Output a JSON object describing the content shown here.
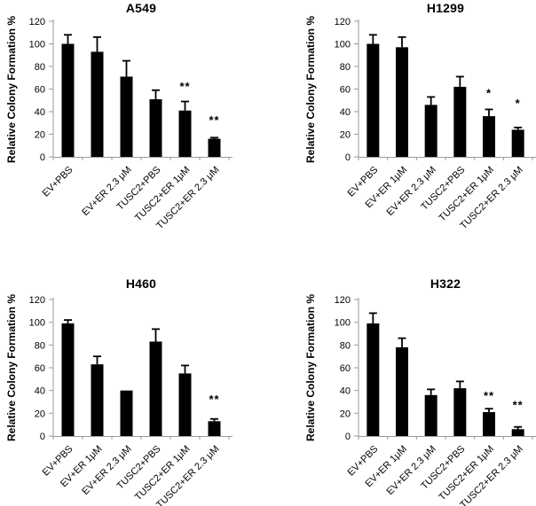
{
  "figure": {
    "background": "#ffffff",
    "bar_color": "#000000",
    "axis_color": "#9a9a9a",
    "error_bar_color": "#000000",
    "text_color": "#000000"
  },
  "chart_data": [
    {
      "type": "bar",
      "title": "A549",
      "ylabel": "Relative Colony Formation %",
      "ylim": [
        0,
        120
      ],
      "ytick_step": 20,
      "ytick_labels": [
        "0",
        "20",
        "40",
        "60",
        "80",
        "100",
        "120"
      ],
      "grid": false,
      "legend": false,
      "categories": [
        "EV+PBS",
        "",
        "EV+ER 2.3 μM",
        "TUSC2+PBS",
        "TUSC2+ER 1μM",
        "TUSC2+ER 2.3 μM"
      ],
      "values": [
        100,
        93,
        71,
        51,
        41,
        16
      ],
      "errors": [
        8,
        13,
        14,
        8,
        8,
        1
      ],
      "significance": [
        "",
        "",
        "",
        "",
        "**",
        "**"
      ],
      "sig_y": [
        0,
        0,
        0,
        0,
        62,
        32
      ]
    },
    {
      "type": "bar",
      "title": "H1299",
      "ylabel": "Relative Colony Formation %",
      "ylim": [
        0,
        120
      ],
      "ytick_step": 20,
      "ytick_labels": [
        "0",
        "20",
        "40",
        "60",
        "80",
        "100",
        "120"
      ],
      "grid": false,
      "legend": false,
      "categories": [
        "EV+PBS",
        "EV+ER 1μM",
        "EV+ER 2.3 μM",
        "TUSC2+PBS",
        "TUSC2+ER 1μM",
        "TUSC2+ER 2.3 μM"
      ],
      "values": [
        100,
        97,
        46,
        62,
        36,
        24
      ],
      "errors": [
        8,
        9,
        7,
        9,
        6,
        2
      ],
      "significance": [
        "",
        "",
        "",
        "",
        "*",
        "*"
      ],
      "sig_y": [
        0,
        0,
        0,
        0,
        56,
        47
      ]
    },
    {
      "type": "bar",
      "title": "H460",
      "ylabel": "Relative Colony Formation %",
      "ylim": [
        0,
        120
      ],
      "ytick_step": 20,
      "ytick_labels": [
        "0",
        "20",
        "40",
        "60",
        "80",
        "100",
        "120"
      ],
      "grid": false,
      "legend": false,
      "categories": [
        "EV+PBS",
        "EV+ER 1μM",
        "EV+ER 2.3 μM",
        "TUSC2+PBS",
        "TUSC2+ER 1μM",
        "TUSC2+ER 2.3 μM"
      ],
      "values": [
        99,
        63,
        40,
        83,
        55,
        13
      ],
      "errors": [
        3,
        7,
        0,
        11,
        7,
        2
      ],
      "significance": [
        "",
        "",
        "",
        "",
        "",
        "**"
      ],
      "sig_y": [
        0,
        0,
        0,
        0,
        0,
        32
      ]
    },
    {
      "type": "bar",
      "title": "H322",
      "ylabel": "Relative Colony Formation %",
      "ylim": [
        0,
        120
      ],
      "ytick_step": 20,
      "ytick_labels": [
        "0",
        "20",
        "40",
        "60",
        "80",
        "100",
        "120"
      ],
      "grid": false,
      "legend": false,
      "categories": [
        "EV+PBS",
        "EV+ER 1μM",
        "EV+ER 2.3 μM",
        "TUSC2+PBS",
        "TUSC2+ER 1μM",
        "TUSC2+ER 2.3 μM"
      ],
      "values": [
        99,
        78,
        36,
        42,
        21,
        6
      ],
      "errors": [
        9,
        8,
        5,
        6,
        3,
        2
      ],
      "significance": [
        "",
        "",
        "",
        "",
        "**",
        "**"
      ],
      "sig_y": [
        0,
        0,
        0,
        0,
        35,
        27
      ]
    }
  ]
}
